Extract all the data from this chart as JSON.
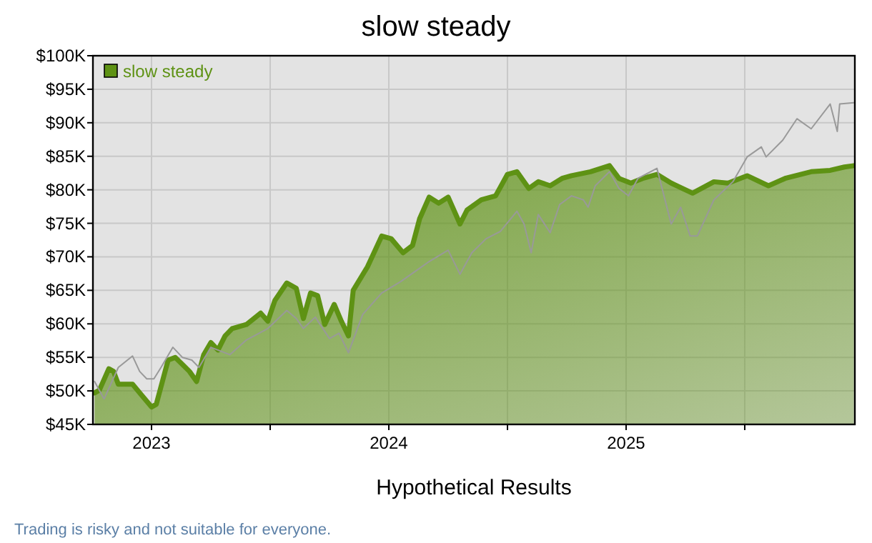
{
  "chart_data": {
    "type": "area",
    "title": "slow steady",
    "xlabel": "Hypothetical Results",
    "annotations": [
      "Trading is risky and not suitable for everyone."
    ],
    "xlim": [
      2022.753,
      2025.964
    ],
    "xticks": [
      2023,
      {
        "value": 2023.5,
        "label": null
      },
      2024,
      {
        "value": 2024.5,
        "label": null
      },
      2025,
      {
        "value": 2025.5,
        "label": null
      }
    ],
    "ylim": [
      45000,
      100000
    ],
    "yticks": [
      {
        "value": 45000,
        "label": "$45K"
      },
      {
        "value": 50000,
        "label": "$50K"
      },
      {
        "value": 55000,
        "label": "$55K"
      },
      {
        "value": 60000,
        "label": "$60K"
      },
      {
        "value": 65000,
        "label": "$65K"
      },
      {
        "value": 70000,
        "label": "$70K"
      },
      {
        "value": 75000,
        "label": "$75K"
      },
      {
        "value": 80000,
        "label": "$80K"
      },
      {
        "value": 85000,
        "label": "$85K"
      },
      {
        "value": 90000,
        "label": "$90K"
      },
      {
        "value": 95000,
        "label": "$95K"
      },
      {
        "value": 100000,
        "label": "$100K"
      }
    ],
    "grid": true,
    "legend": "top left",
    "series": [
      {
        "name": "slow steady",
        "color": "#5e9214",
        "x": [
          2022.76,
          2022.78,
          2022.82,
          2022.84,
          2022.86,
          2022.92,
          2022.96,
          2023.0,
          2023.02,
          2023.07,
          2023.1,
          2023.16,
          2023.19,
          2023.22,
          2023.25,
          2023.28,
          2023.31,
          2023.34,
          2023.4,
          2023.46,
          2023.49,
          2023.52,
          2023.57,
          2023.61,
          2023.64,
          2023.67,
          2023.7,
          2023.73,
          2023.77,
          2023.8,
          2023.83,
          2023.85,
          2023.91,
          2023.97,
          2024.01,
          2024.06,
          2024.1,
          2024.13,
          2024.17,
          2024.21,
          2024.25,
          2024.3,
          2024.33,
          2024.39,
          2024.45,
          2024.5,
          2024.54,
          2024.59,
          2024.63,
          2024.68,
          2024.73,
          2024.77,
          2024.85,
          2024.93,
          2024.97,
          2025.02,
          2025.07,
          2025.13,
          2025.19,
          2025.28,
          2025.37,
          2025.43,
          2025.51,
          2025.6,
          2025.67,
          2025.78,
          2025.86,
          2025.92,
          2025.96
        ],
        "values": [
          49700,
          50100,
          53300,
          52900,
          51000,
          51000,
          49300,
          47600,
          48000,
          54600,
          55000,
          52900,
          51400,
          55400,
          57200,
          56100,
          58200,
          59300,
          59900,
          61600,
          60400,
          63500,
          66100,
          65300,
          60800,
          64600,
          64200,
          59900,
          62900,
          60400,
          58200,
          65000,
          68500,
          73100,
          72700,
          70600,
          71700,
          75700,
          78900,
          78000,
          78900,
          74900,
          77000,
          78500,
          79100,
          82300,
          82700,
          80200,
          81200,
          80600,
          81700,
          82100,
          82700,
          83600,
          81700,
          81000,
          81700,
          82300,
          81000,
          79500,
          81200,
          81000,
          82100,
          80600,
          81700,
          82700,
          82900,
          83400,
          83600
        ]
      },
      {
        "type": "line",
        "color": "#999999",
        "x": [
          2022.76,
          2022.8,
          2022.86,
          2022.92,
          2022.95,
          2022.98,
          2023.01,
          2023.04,
          2023.09,
          2023.13,
          2023.17,
          2023.2,
          2023.25,
          2023.33,
          2023.4,
          2023.49,
          2023.57,
          2023.61,
          2023.64,
          2023.69,
          2023.75,
          2023.79,
          2023.83,
          2023.89,
          2023.97,
          2024.05,
          2024.11,
          2024.17,
          2024.25,
          2024.3,
          2024.35,
          2024.41,
          2024.47,
          2024.54,
          2024.57,
          2024.6,
          2024.63,
          2024.68,
          2024.72,
          2024.77,
          2024.82,
          2024.84,
          2024.87,
          2024.93,
          2024.97,
          2025.01,
          2025.05,
          2025.13,
          2025.19,
          2025.23,
          2025.27,
          2025.3,
          2025.37,
          2025.45,
          2025.51,
          2025.57,
          2025.59,
          2025.66,
          2025.72,
          2025.78,
          2025.86,
          2025.89,
          2025.9,
          2025.96
        ],
        "values": [
          51400,
          48800,
          53500,
          55200,
          52900,
          51800,
          51800,
          53500,
          56500,
          55000,
          54600,
          53500,
          56500,
          55400,
          57600,
          59300,
          62000,
          60800,
          59300,
          61000,
          57800,
          58600,
          55700,
          61400,
          64600,
          66300,
          67800,
          69300,
          71000,
          67400,
          70600,
          72700,
          73800,
          76800,
          74900,
          70600,
          76300,
          73600,
          77800,
          79100,
          78500,
          77400,
          80600,
          82700,
          80200,
          79100,
          81700,
          83200,
          74900,
          77400,
          73100,
          73100,
          78500,
          81200,
          84900,
          86400,
          84900,
          87400,
          90600,
          89100,
          92800,
          88700,
          92800,
          93000
        ]
      }
    ]
  }
}
